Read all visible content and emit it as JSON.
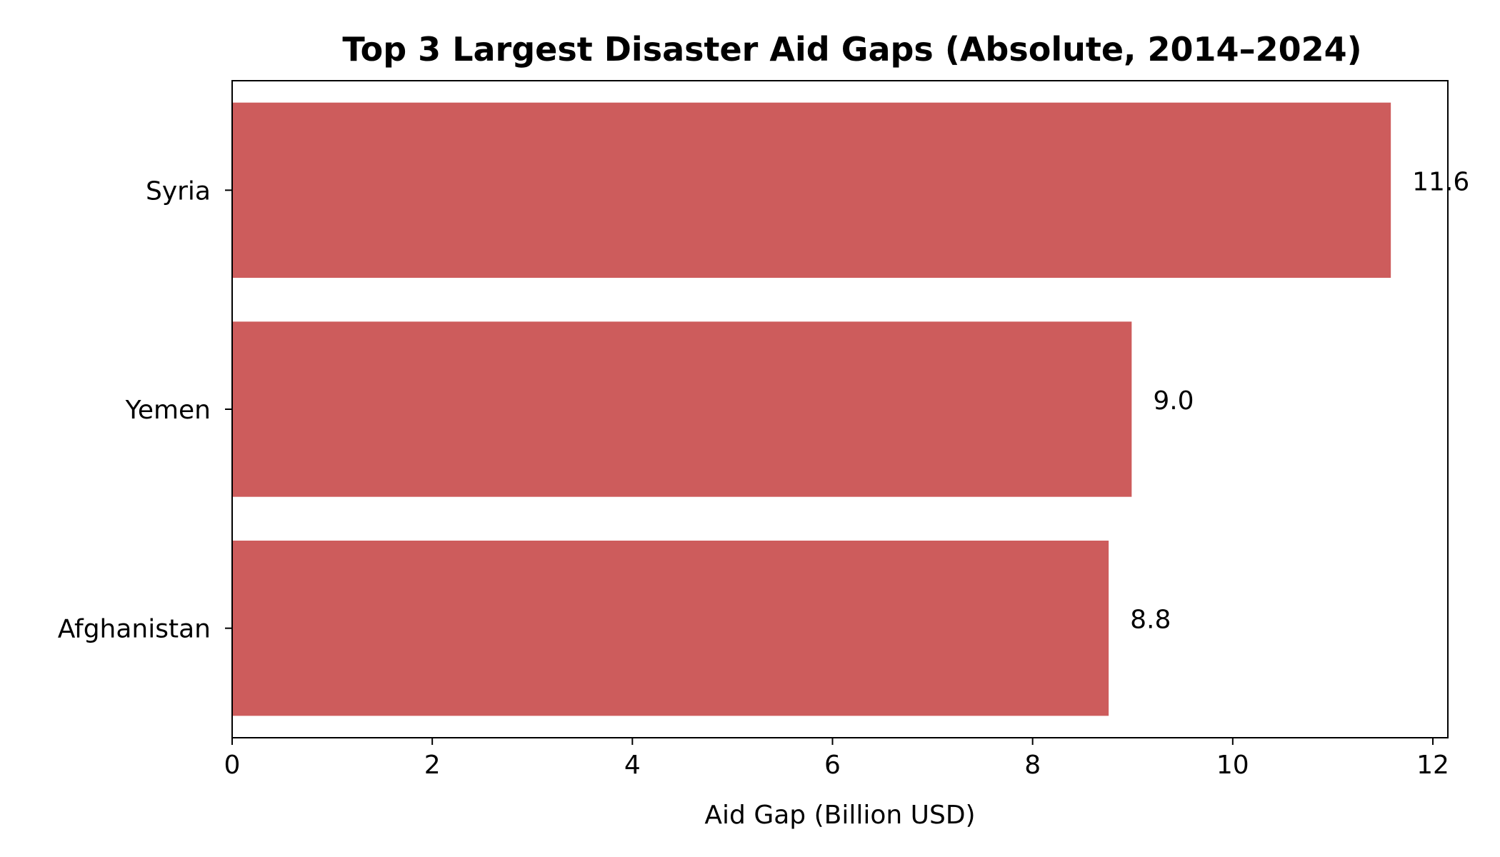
{
  "chart_data": {
    "type": "bar",
    "orientation": "horizontal",
    "title": "Top 3 Largest Disaster Aid Gaps (Absolute, 2014–2024)",
    "xlabel": "Aid Gap (Billion USD)",
    "ylabel": "",
    "categories": [
      "Syria",
      "Yemen",
      "Afghanistan"
    ],
    "values": [
      11.58,
      8.99,
      8.76
    ],
    "data_labels": [
      "11.6",
      "9.0",
      "8.8"
    ],
    "xlim": [
      0,
      12.15
    ],
    "xticks": [
      0,
      2,
      4,
      6,
      8,
      10,
      12
    ],
    "grid": false,
    "legend": "none",
    "bar_color": "#cd5c5c"
  }
}
